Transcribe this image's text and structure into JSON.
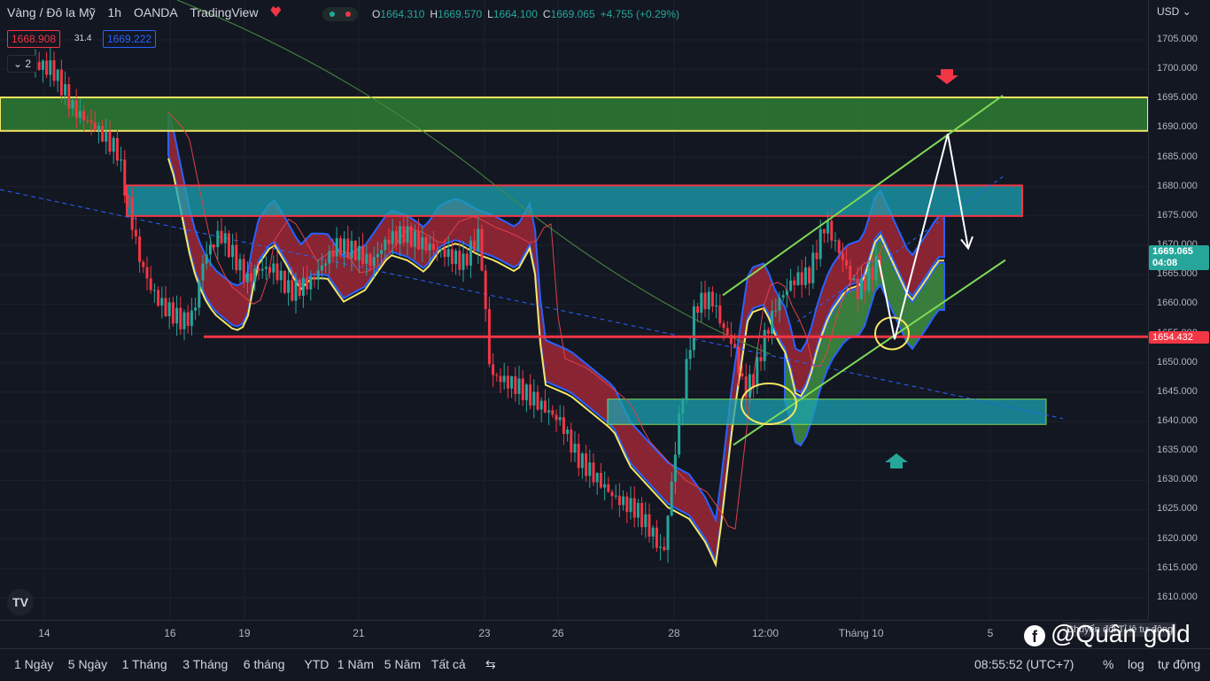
{
  "header": {
    "symbol": "Vàng / Đô la Mỹ",
    "interval": "1h",
    "broker": "OANDA",
    "platform": "TradingView",
    "ohlc": {
      "o": "1664.310",
      "h": "1669.570",
      "l": "1664.100",
      "c": "1669.065",
      "chg": "+4.755 (+0.29%)"
    }
  },
  "trade": {
    "sell": "1668.908",
    "spread": "31.4",
    "buy": "1669.222"
  },
  "indicator_count": "2",
  "currency": "USD",
  "last_price": "1669.065",
  "countdown": "04:08",
  "hline_label": "1654.432",
  "bottom_bar": {
    "periods": [
      "1 Ngày",
      "5 Ngày",
      "1 Tháng",
      "3 Tháng",
      "6 tháng",
      "YTD",
      "1 Năm",
      "5 Năm",
      "Tất cả"
    ],
    "clock": "08:55:52 (UTC+7)",
    "percent": "%",
    "log": "log",
    "auto": "tự động"
  },
  "watermark": "@Quân gold",
  "tooltip": "Chuyển đổi Tỉ lệ tự động",
  "colors": {
    "up": "#26a69a",
    "down": "#f23645",
    "zone_green": "#2e7d32",
    "zone_teal": "#1aa3b3",
    "kumo_red": "#b22a3a",
    "kumo_green": "#3f8f3f",
    "yellow": "#f5e663",
    "trend": "#7ed957"
  },
  "chart_data": {
    "type": "candlestick",
    "ylim": [
      1606,
      1708
    ],
    "y_ticks": [
      1705,
      1700,
      1695,
      1690,
      1685,
      1680,
      1675,
      1670,
      1665,
      1660,
      1655,
      1650,
      1645,
      1640,
      1635,
      1630,
      1625,
      1620,
      1615,
      1610
    ],
    "x_ticks": [
      "14",
      "16",
      "19",
      "21",
      "23",
      "26",
      "28",
      "12:00",
      "Tháng 10",
      "5"
    ],
    "price_path": [
      [
        0,
        1701
      ],
      [
        20,
        1700
      ],
      [
        40,
        1693
      ],
      [
        60,
        1690
      ],
      [
        80,
        1686
      ],
      [
        100,
        1668
      ],
      [
        110,
        1663
      ],
      [
        120,
        1660
      ],
      [
        140,
        1657
      ],
      [
        150,
        1658
      ],
      [
        160,
        1668
      ],
      [
        175,
        1672
      ],
      [
        185,
        1669
      ],
      [
        200,
        1664
      ],
      [
        210,
        1666
      ],
      [
        225,
        1666
      ],
      [
        240,
        1662
      ],
      [
        260,
        1664
      ],
      [
        275,
        1668
      ],
      [
        283,
        1670
      ],
      [
        300,
        1669
      ],
      [
        315,
        1667
      ],
      [
        330,
        1671
      ],
      [
        345,
        1672
      ],
      [
        365,
        1670
      ],
      [
        380,
        1669
      ],
      [
        400,
        1667
      ],
      [
        415,
        1672
      ],
      [
        425,
        1648
      ],
      [
        450,
        1646
      ],
      [
        470,
        1643
      ],
      [
        490,
        1640
      ],
      [
        505,
        1634
      ],
      [
        520,
        1631
      ],
      [
        540,
        1627
      ],
      [
        560,
        1625
      ],
      [
        575,
        1621
      ],
      [
        585,
        1617
      ],
      [
        600,
        1641
      ],
      [
        615,
        1660
      ],
      [
        630,
        1661
      ],
      [
        640,
        1656
      ],
      [
        650,
        1653
      ],
      [
        660,
        1645
      ],
      [
        670,
        1648
      ],
      [
        680,
        1655
      ],
      [
        690,
        1660
      ],
      [
        705,
        1664
      ],
      [
        720,
        1665
      ],
      [
        735,
        1674
      ],
      [
        750,
        1668
      ],
      [
        765,
        1662
      ],
      [
        780,
        1666
      ],
      [
        790,
        1669
      ]
    ],
    "zones": [
      {
        "name": "resistance",
        "y": [
          1689.5,
          1695.2
        ]
      },
      {
        "name": "supply",
        "y": [
          1675,
          1680.2
        ]
      },
      {
        "name": "demand",
        "y": [
          1639.5,
          1643.8
        ]
      }
    ],
    "hline": 1654.432
  }
}
